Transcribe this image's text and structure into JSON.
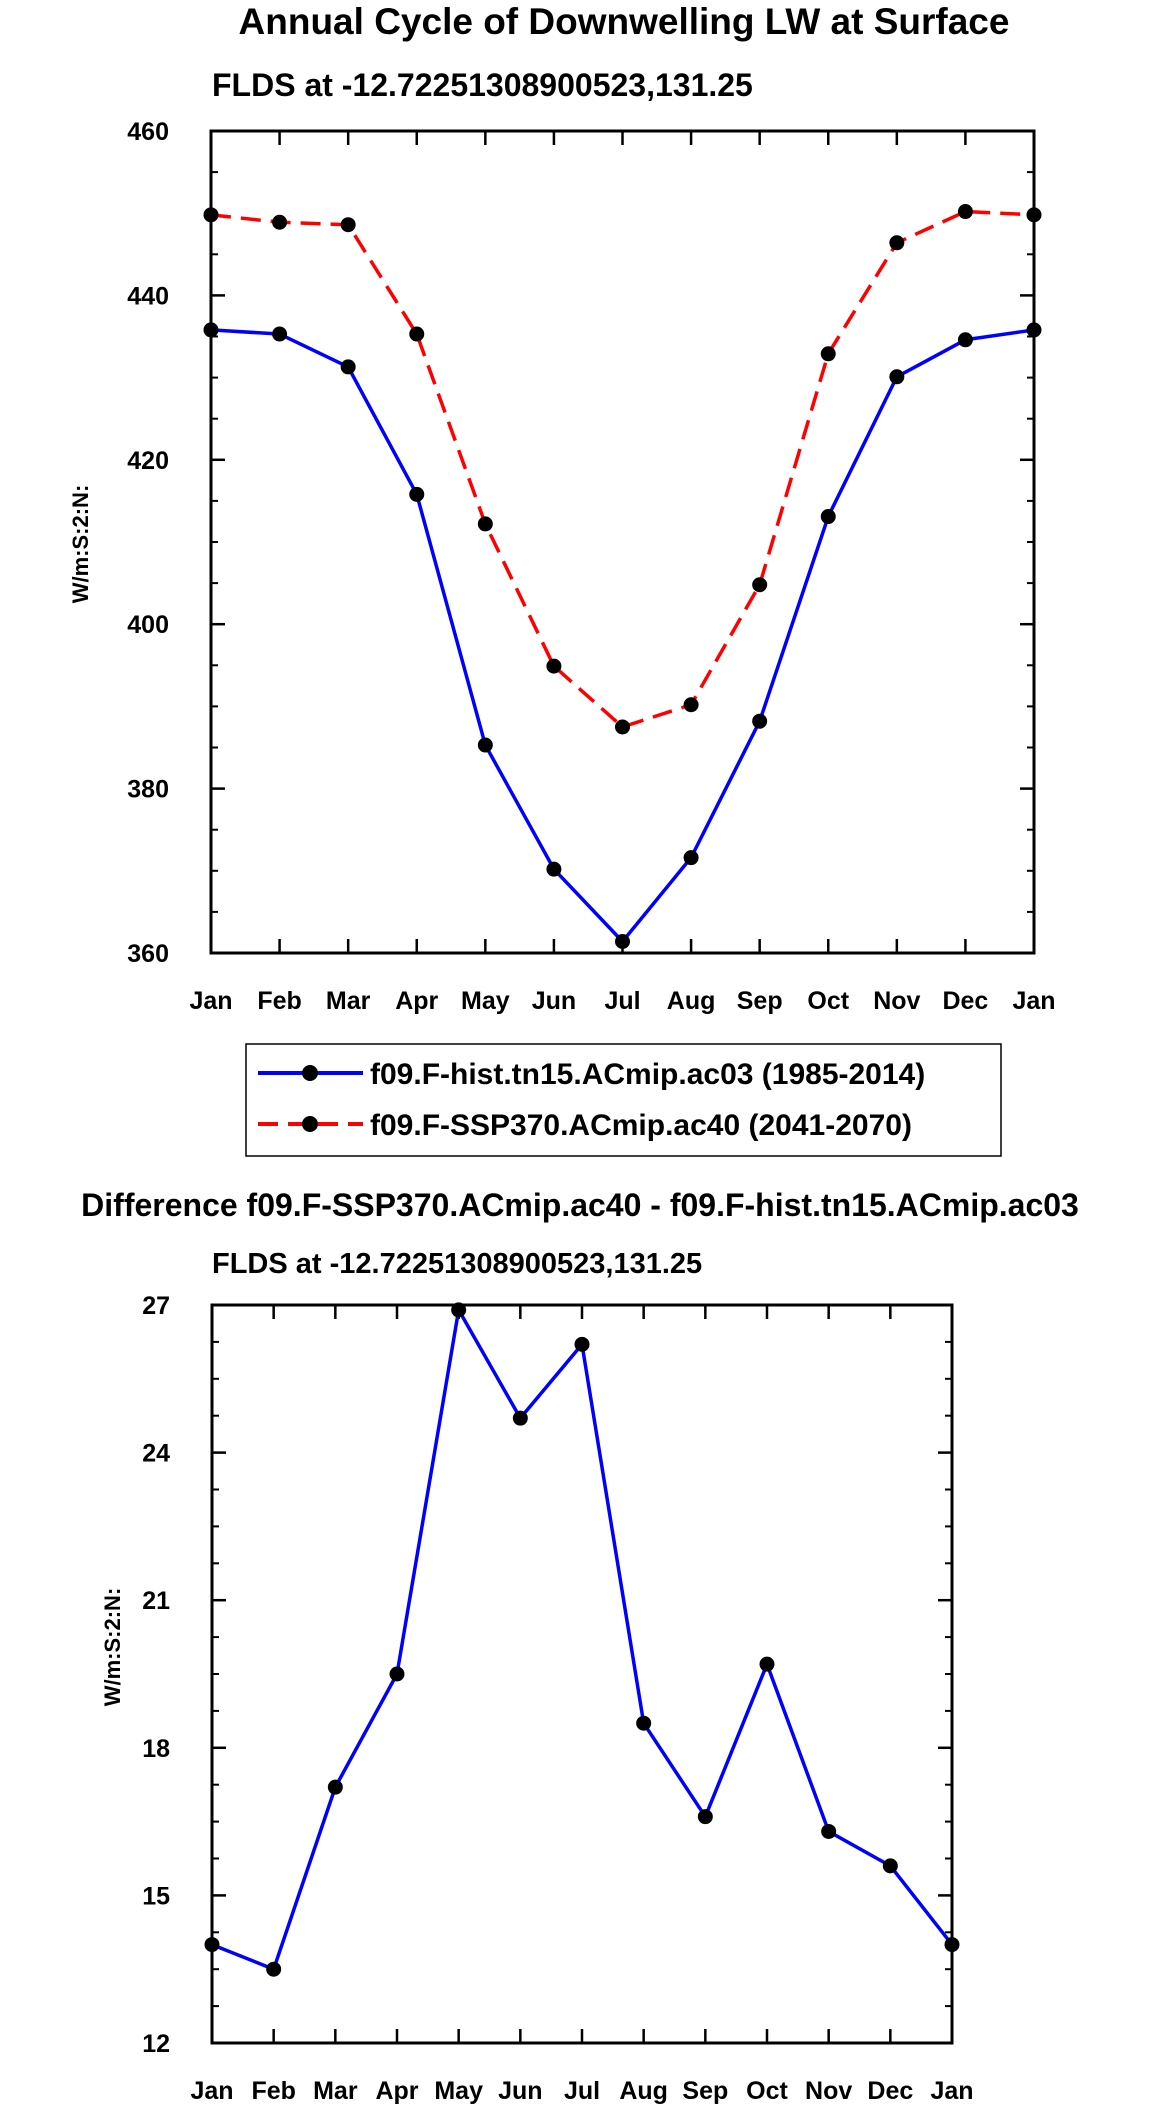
{
  "chart_data": [
    {
      "type": "line",
      "title": "Annual Cycle of Downwelling LW at Surface",
      "subtitle": "FLDS at -12.72251308900523,131.25",
      "ylabel": "W/m:S:2:N:",
      "xlabel": "",
      "ylim": [
        360,
        460
      ],
      "yticks": [
        360,
        380,
        400,
        420,
        440,
        460
      ],
      "categories": [
        "Jan",
        "Feb",
        "Mar",
        "Apr",
        "May",
        "Jun",
        "Jul",
        "Aug",
        "Sep",
        "Oct",
        "Nov",
        "Dec",
        "Jan"
      ],
      "series": [
        {
          "name": "f09.F-hist.tn15.ACmip.ac03 (1985-2014)",
          "color": "#0000ff",
          "dash": "solid",
          "values": [
            435.8,
            435.3,
            431.3,
            415.8,
            385.3,
            370.2,
            361.4,
            371.6,
            388.2,
            413.1,
            430.1,
            434.6,
            435.8
          ]
        },
        {
          "name": "f09.F-SSP370.ACmip.ac40 (2041-2070)",
          "color": "#ff0000",
          "dash": "dashed",
          "values": [
            449.8,
            448.9,
            448.6,
            435.3,
            412.2,
            394.9,
            387.5,
            390.2,
            404.8,
            432.9,
            446.4,
            450.2,
            449.8
          ]
        }
      ],
      "legend": "bottom"
    },
    {
      "type": "line",
      "title": "Difference f09.F-SSP370.ACmip.ac40 - f09.F-hist.tn15.ACmip.ac03",
      "subtitle": "FLDS at -12.72251308900523,131.25",
      "ylabel": "W/m:S:2:N:",
      "xlabel": "",
      "ylim": [
        12,
        27
      ],
      "yticks": [
        12,
        15,
        18,
        21,
        24,
        27
      ],
      "categories": [
        "Jan",
        "Feb",
        "Mar",
        "Apr",
        "May",
        "Jun",
        "Jul",
        "Aug",
        "Sep",
        "Oct",
        "Nov",
        "Dec",
        "Jan"
      ],
      "series": [
        {
          "name": "Difference",
          "color": "#0000ff",
          "dash": "solid",
          "values": [
            14.0,
            13.5,
            17.2,
            19.5,
            26.9,
            24.7,
            26.2,
            18.5,
            16.6,
            19.7,
            16.3,
            15.6,
            14.0
          ]
        }
      ]
    }
  ]
}
